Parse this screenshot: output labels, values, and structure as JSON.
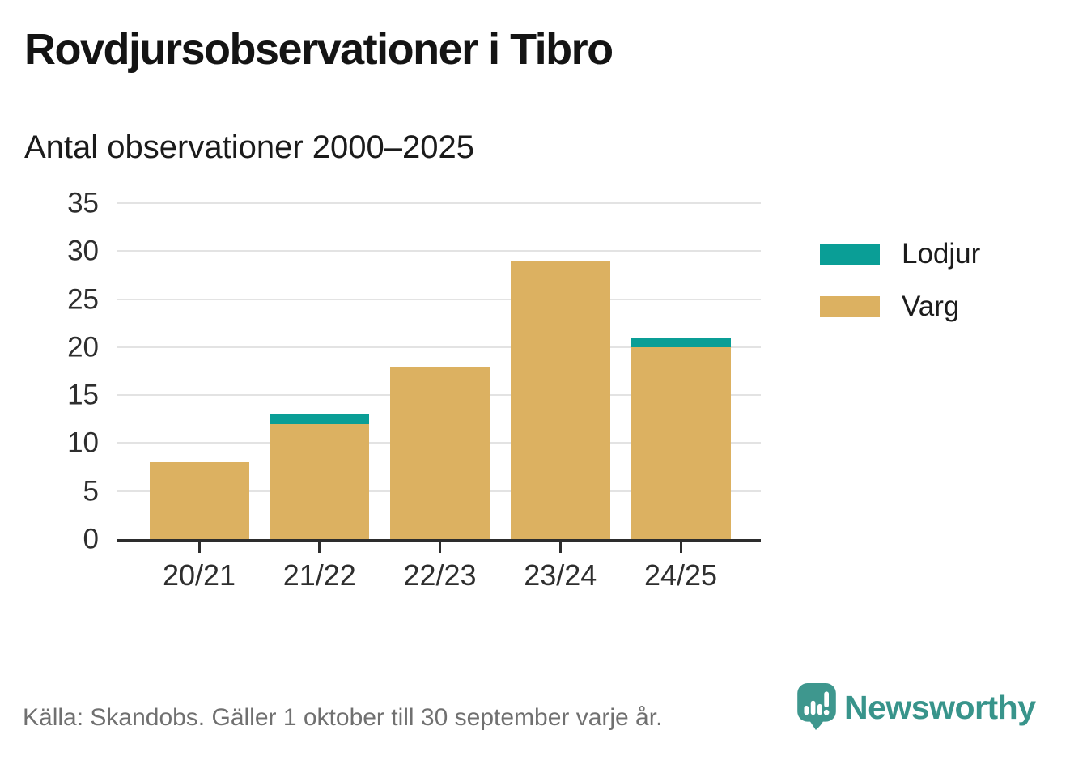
{
  "header": {
    "title": "Rovdjursobservationer i Tibro",
    "subtitle": "Antal observationer 2000–2025"
  },
  "chart_data": {
    "type": "bar",
    "stacked": true,
    "title": "Rovdjursobservationer i Tibro",
    "subtitle": "Antal observationer 2000–2025",
    "categories": [
      "20/21",
      "21/22",
      "22/23",
      "23/24",
      "24/25"
    ],
    "series": [
      {
        "name": "Lodjur",
        "color": "#0a9e96",
        "values": [
          0,
          1,
          0,
          0,
          1
        ]
      },
      {
        "name": "Varg",
        "color": "#dcb161",
        "values": [
          8,
          12,
          18,
          29,
          20
        ]
      }
    ],
    "totals": [
      8,
      13,
      18,
      29,
      21
    ],
    "xlabel": "",
    "ylabel": "",
    "ylim": [
      0,
      35
    ],
    "yticks": [
      0,
      5,
      10,
      15,
      20,
      25,
      30,
      35
    ],
    "grid": true,
    "legend_position": "right"
  },
  "legend": {
    "items": [
      {
        "label": "Lodjur",
        "color": "#0a9e96"
      },
      {
        "label": "Varg",
        "color": "#dcb161"
      }
    ]
  },
  "footer": {
    "source": "Källa: Skandobs. Gäller 1 oktober till 30 september varje år.",
    "brand": "Newsworthy",
    "brand_color": "#38948b",
    "logo_color": "#3e978e"
  },
  "colors": {
    "axis": "#2d2d2d",
    "grid": "#e3e3e3",
    "tick_text": "#2e2e2e",
    "muted_text": "#707070"
  }
}
